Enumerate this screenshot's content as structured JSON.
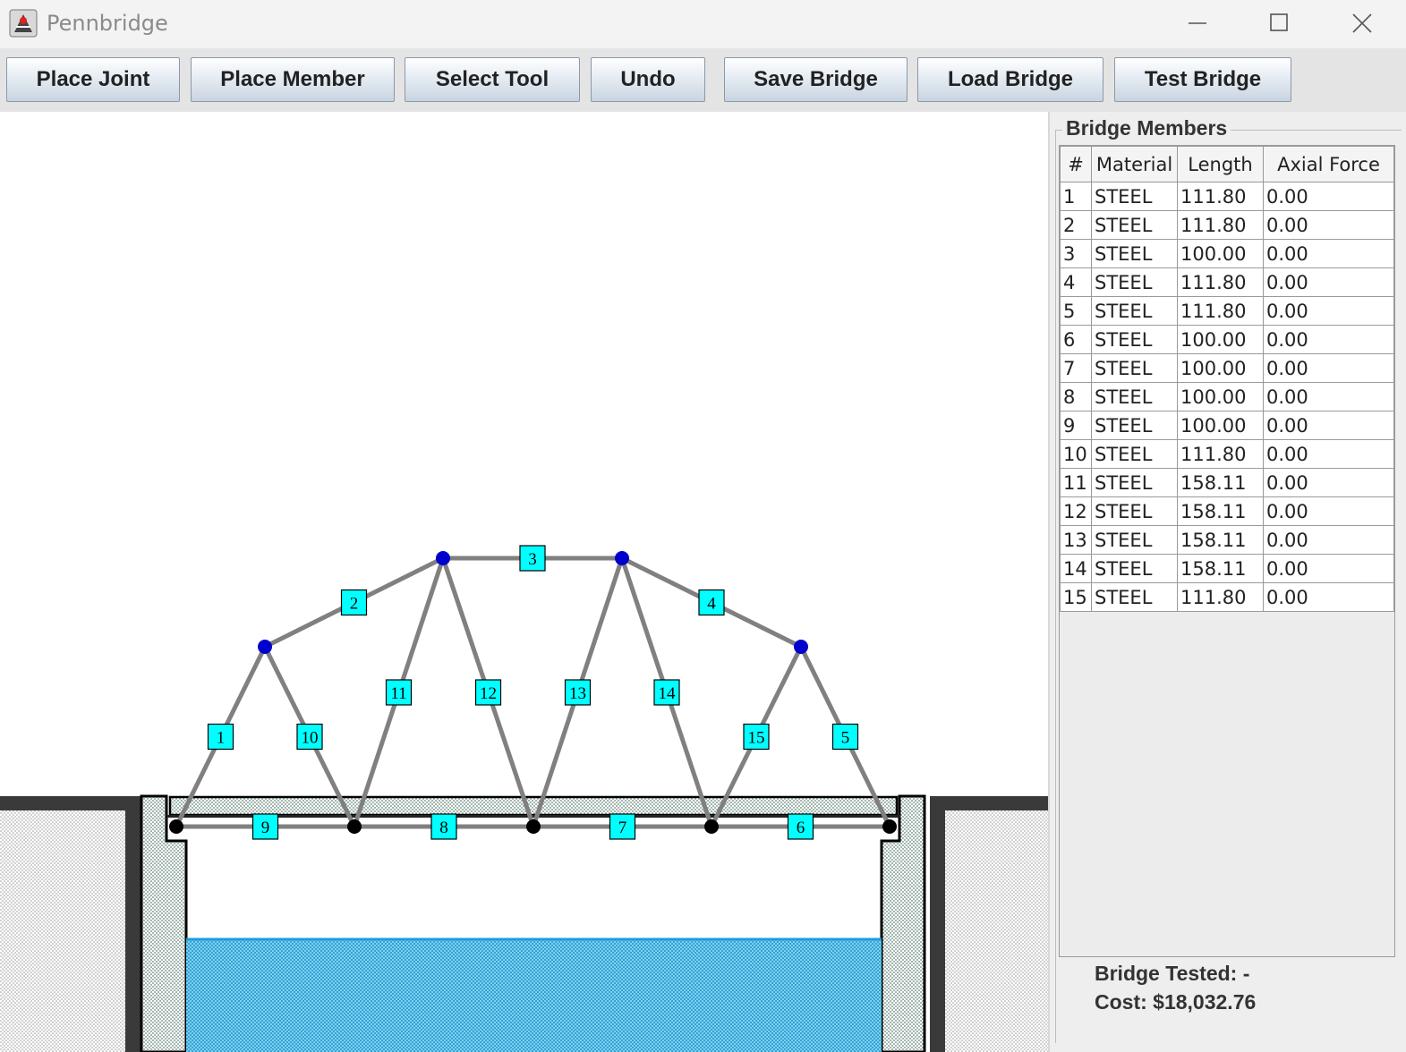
{
  "window": {
    "title": "Pennbridge"
  },
  "toolbar": {
    "place_joint": "Place Joint",
    "place_member": "Place Member",
    "select_tool": "Select Tool",
    "undo": "Undo",
    "save_bridge": "Save Bridge",
    "load_bridge": "Load Bridge",
    "test_bridge": "Test Bridge"
  },
  "panel": {
    "title": "Bridge Members",
    "columns": [
      "#",
      "Material",
      "Length",
      "Axial Force"
    ],
    "rows": [
      [
        "1",
        "STEEL",
        "111.80",
        "0.00"
      ],
      [
        "2",
        "STEEL",
        "111.80",
        "0.00"
      ],
      [
        "3",
        "STEEL",
        "100.00",
        "0.00"
      ],
      [
        "4",
        "STEEL",
        "111.80",
        "0.00"
      ],
      [
        "5",
        "STEEL",
        "111.80",
        "0.00"
      ],
      [
        "6",
        "STEEL",
        "100.00",
        "0.00"
      ],
      [
        "7",
        "STEEL",
        "100.00",
        "0.00"
      ],
      [
        "8",
        "STEEL",
        "100.00",
        "0.00"
      ],
      [
        "9",
        "STEEL",
        "100.00",
        "0.00"
      ],
      [
        "10",
        "STEEL",
        "111.80",
        "0.00"
      ],
      [
        "11",
        "STEEL",
        "158.11",
        "0.00"
      ],
      [
        "12",
        "STEEL",
        "158.11",
        "0.00"
      ],
      [
        "13",
        "STEEL",
        "158.11",
        "0.00"
      ],
      [
        "14",
        "STEEL",
        "158.11",
        "0.00"
      ],
      [
        "15",
        "STEEL",
        "111.80",
        "0.00"
      ]
    ],
    "bridge_tested": "Bridge Tested: -",
    "cost": "Cost: $18,032.76"
  },
  "colors": {
    "member": "#808080",
    "label_fill": "#00ffff",
    "joint_free": "#0000cc",
    "joint_fixed": "#000000",
    "water": "#29a3dc"
  }
}
